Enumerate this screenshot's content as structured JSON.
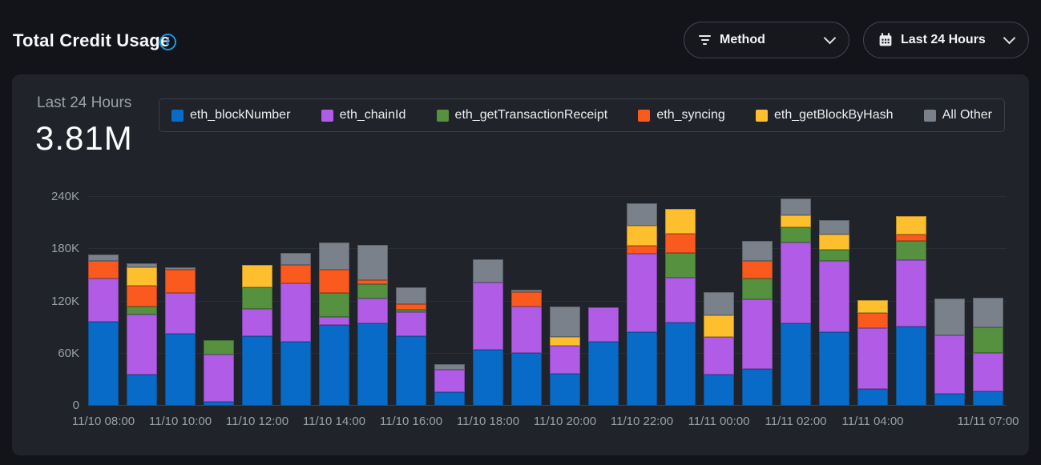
{
  "header": {
    "title": "Total Credit Usage",
    "method_filter": {
      "label": "Method"
    },
    "time_filter": {
      "label": "Last 24 Hours"
    }
  },
  "card": {
    "period_label": "Last 24 Hours",
    "total": "3.81M"
  },
  "colors": {
    "accent_info": "#2196e3",
    "page_background": "#131419",
    "card_background": "#202329"
  },
  "chart_data": {
    "type": "bar",
    "stacked": true,
    "grid": true,
    "legend_position": "top",
    "bar_count": 24,
    "x_unit": "1 hour per bar",
    "y_unit": "credits (K = thousands)",
    "ylim": [
      0,
      240
    ],
    "y_ticks": [
      {
        "value": 0,
        "label": "0"
      },
      {
        "value": 60,
        "label": "60K"
      },
      {
        "value": 120,
        "label": "120K"
      },
      {
        "value": 180,
        "label": "180K"
      },
      {
        "value": 240,
        "label": "240K"
      }
    ],
    "x_tick_labels": [
      {
        "index": 0,
        "label": "11/10 08:00"
      },
      {
        "index": 2,
        "label": "11/10 10:00"
      },
      {
        "index": 4,
        "label": "11/10 12:00"
      },
      {
        "index": 6,
        "label": "11/10 14:00"
      },
      {
        "index": 8,
        "label": "11/10 16:00"
      },
      {
        "index": 10,
        "label": "11/10 18:00"
      },
      {
        "index": 12,
        "label": "11/10 20:00"
      },
      {
        "index": 14,
        "label": "11/10 22:00"
      },
      {
        "index": 16,
        "label": "11/11 00:00"
      },
      {
        "index": 18,
        "label": "11/11 02:00"
      },
      {
        "index": 20,
        "label": "11/11 04:00"
      },
      {
        "index": 23,
        "label": "11/11 07:00"
      }
    ],
    "series": [
      {
        "name": "eth_blockNumber",
        "color": "#096bc8",
        "values": [
          97,
          36,
          83,
          5,
          80,
          74,
          93,
          95,
          80,
          16,
          64,
          61,
          37,
          74,
          85,
          96,
          36,
          42,
          95,
          85,
          19,
          91,
          14,
          17
        ]
      },
      {
        "name": "eth_chainId",
        "color": "#b15ce6",
        "values": [
          49,
          69,
          47,
          54,
          31,
          67,
          9,
          28,
          28,
          25,
          78,
          53,
          32,
          39,
          90,
          51,
          43,
          80,
          93,
          81,
          70,
          76,
          67,
          44
        ]
      },
      {
        "name": "eth_getTransactionReceipt",
        "color": "#55913f",
        "values": [
          0,
          9,
          0,
          16,
          25,
          0,
          28,
          17,
          2,
          0,
          0,
          0,
          0,
          0,
          0,
          29,
          0,
          24,
          17,
          13,
          0,
          22,
          0,
          29
        ]
      },
      {
        "name": "eth_syncing",
        "color": "#fb5a1f",
        "values": [
          20,
          24,
          26,
          0,
          0,
          21,
          26,
          4,
          7,
          0,
          0,
          17,
          0,
          0,
          9,
          22,
          0,
          20,
          0,
          0,
          18,
          8,
          0,
          0
        ]
      },
      {
        "name": "eth_getBlockByHash",
        "color": "#fdbf2d",
        "values": [
          0,
          21,
          0,
          0,
          26,
          0,
          0,
          0,
          0,
          0,
          0,
          0,
          10,
          0,
          23,
          28,
          25,
          0,
          14,
          18,
          14,
          21,
          0,
          0
        ]
      },
      {
        "name": "All Other",
        "color": "#7a818b",
        "values": [
          8,
          5,
          3,
          0,
          0,
          14,
          32,
          41,
          19,
          7,
          26,
          2,
          35,
          0,
          26,
          0,
          27,
          23,
          19,
          16,
          0,
          0,
          42,
          34
        ]
      }
    ]
  }
}
